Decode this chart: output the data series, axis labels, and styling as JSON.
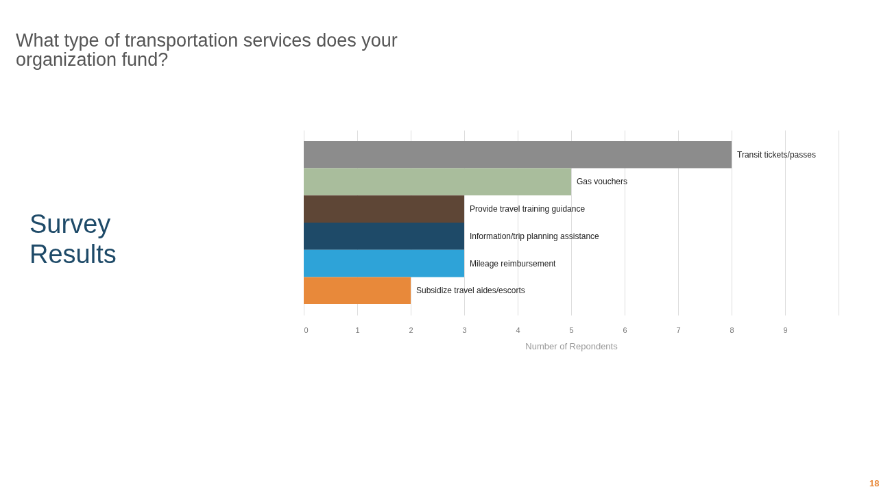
{
  "chart_data": {
    "type": "bar",
    "orientation": "horizontal",
    "title": "What type of transportation services does your organization fund?",
    "xlabel": "Number of Repondents",
    "categories": [
      "Transit tickets/passes",
      "Gas vouchers",
      "Provide travel training guidance",
      "Information/trip planning assistance",
      "Mileage reimbursement",
      "Subsidize travel aides/escorts"
    ],
    "values": [
      8,
      5,
      3,
      3,
      3,
      2
    ],
    "colors": [
      "#8c8c8c",
      "#a9bd9c",
      "#5e4636",
      "#1e4a68",
      "#2ea3d8",
      "#e8893a"
    ],
    "xlim": [
      0,
      10
    ],
    "xticks": [
      0,
      1,
      2,
      3,
      4,
      5,
      6,
      7,
      8,
      9,
      {
        "value": 10,
        "label": null
      }
    ],
    "grid": "x",
    "legend": false,
    "tick_labels": "x",
    "annotations": [
      "Survey Results",
      "18"
    ]
  }
}
